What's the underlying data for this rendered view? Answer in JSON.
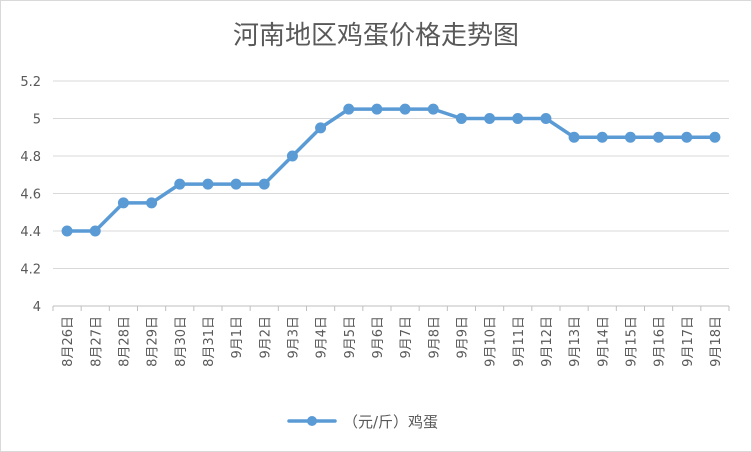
{
  "chart_data": {
    "type": "line",
    "title": "河南地区鸡蛋价格走势图",
    "xlabel": "",
    "ylabel": "",
    "ylim": [
      4,
      5.2
    ],
    "yticks": [
      "4",
      "4.2",
      "4.4",
      "4.6",
      "4.8",
      "5",
      "5.2"
    ],
    "grid": true,
    "legend_position": "bottom",
    "categories": [
      "8月26日",
      "8月27日",
      "8月28日",
      "8月29日",
      "8月30日",
      "8月31日",
      "9月1日",
      "9月2日",
      "9月3日",
      "9月4日",
      "9月5日",
      "9月6日",
      "9月7日",
      "9月8日",
      "9月9日",
      "9月10日",
      "9月11日",
      "9月12日",
      "9月13日",
      "9月14日",
      "9月15日",
      "9月16日",
      "9月17日",
      "9月18日"
    ],
    "series": [
      {
        "name": "（元/斤）鸡蛋",
        "color": "#5b9bd5",
        "values": [
          4.4,
          4.4,
          4.55,
          4.55,
          4.65,
          4.65,
          4.65,
          4.65,
          4.8,
          4.95,
          5.05,
          5.05,
          5.05,
          5.05,
          5.0,
          5.0,
          5.0,
          5.0,
          4.9,
          4.9,
          4.9,
          4.9,
          4.9,
          4.9
        ]
      }
    ]
  }
}
